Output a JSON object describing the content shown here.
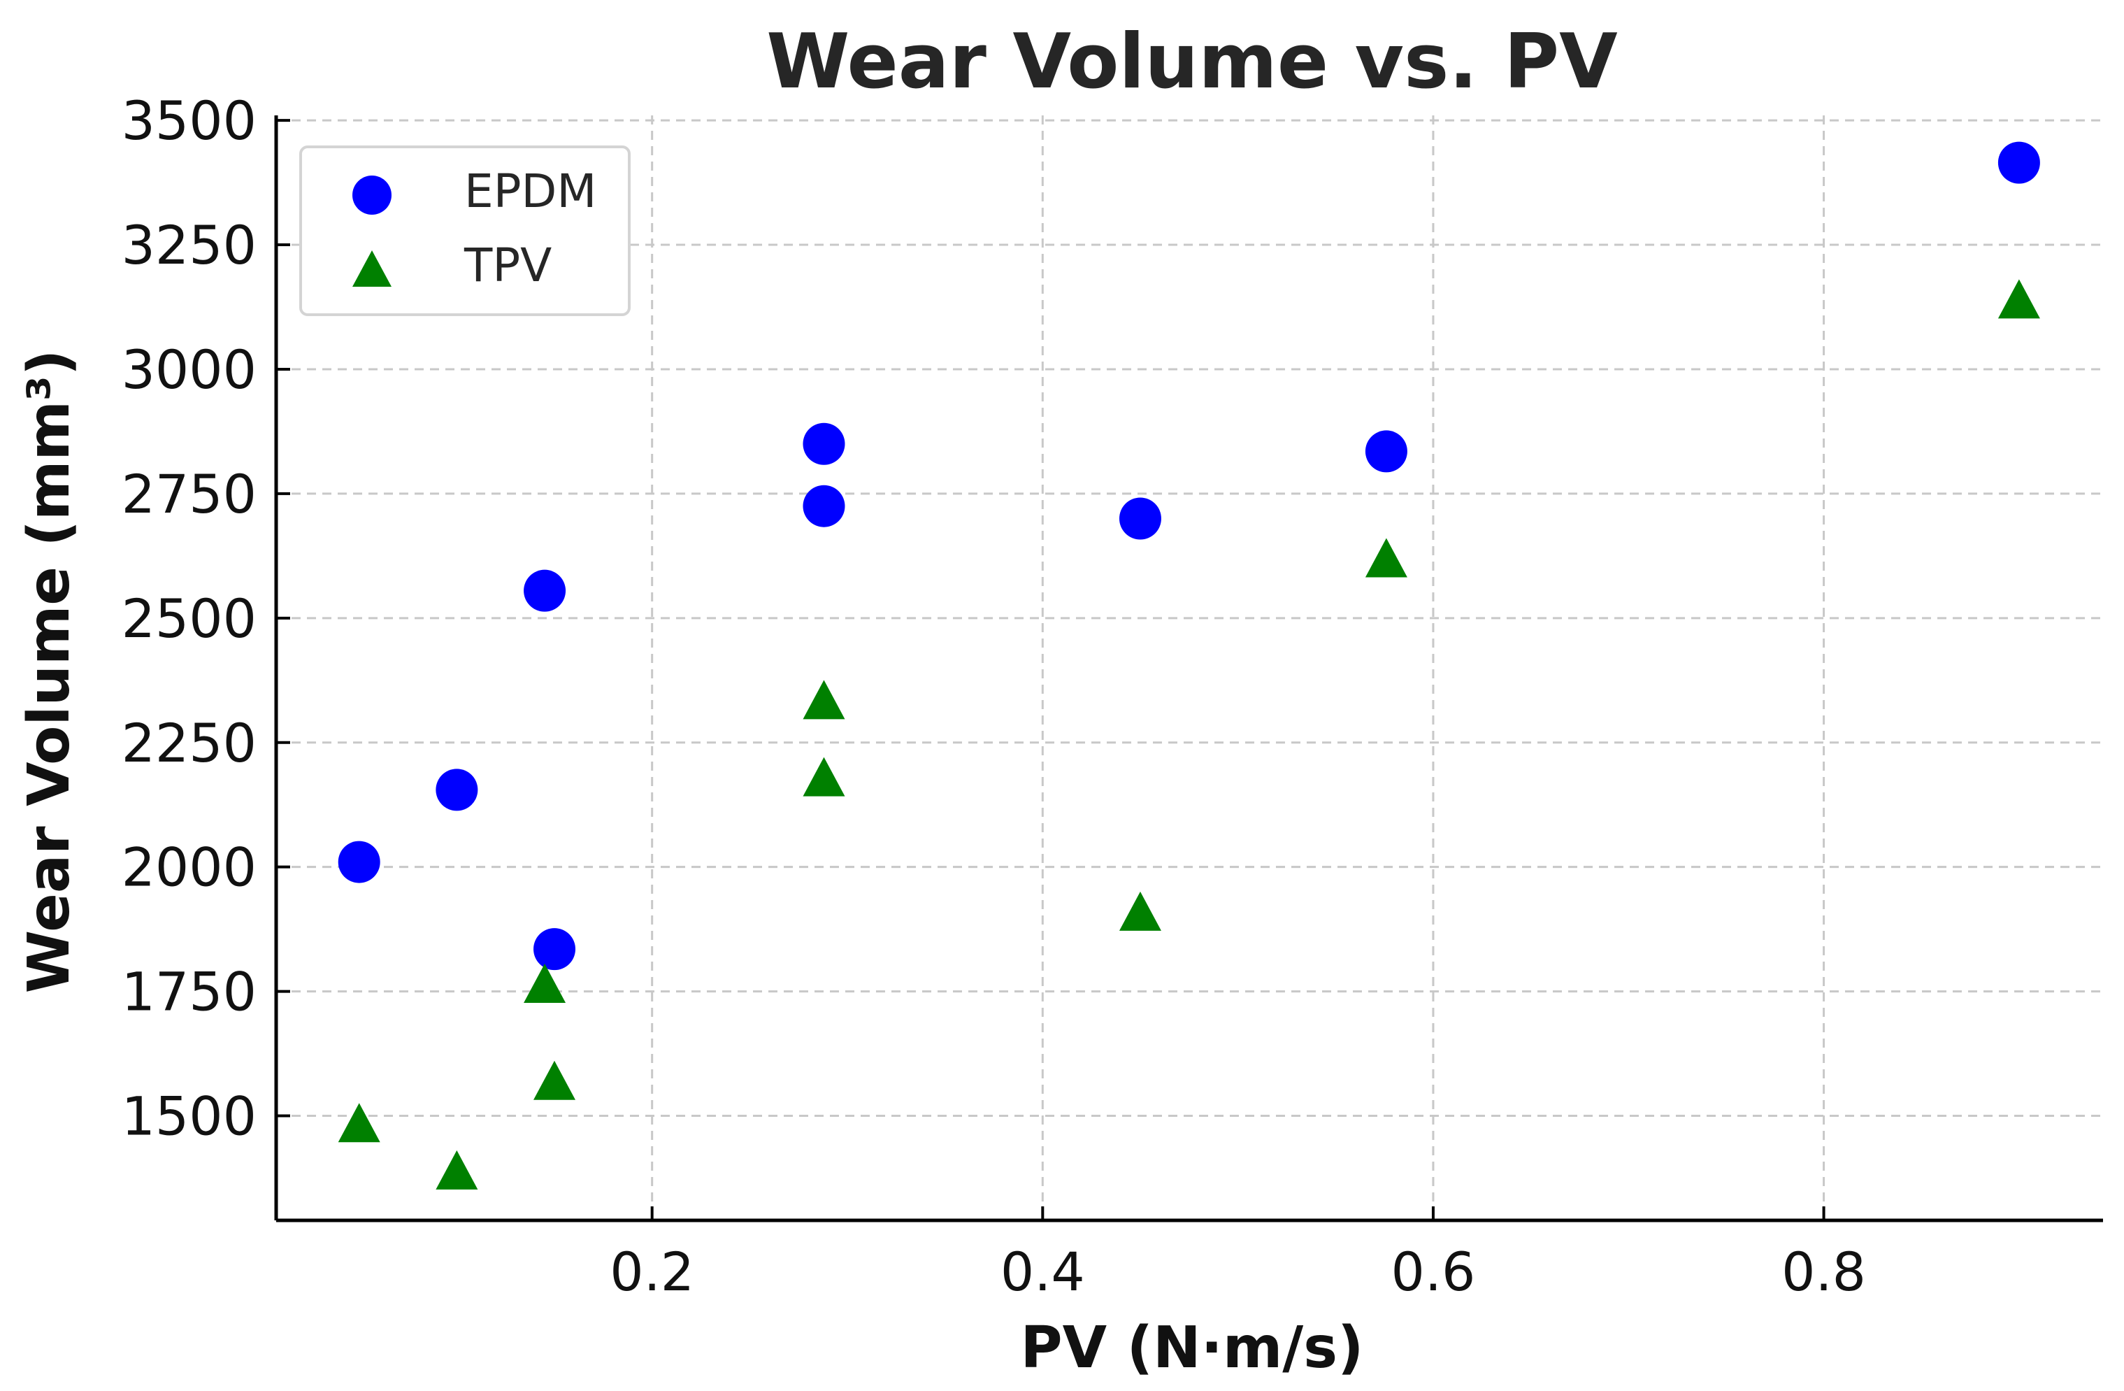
{
  "chart_data": {
    "type": "scatter",
    "title": "Wear Volume vs. PV",
    "xlabel": "PV (N·m/s)",
    "ylabel": "Wear Volume (mm³)",
    "xlim": [
      0.0075,
      0.943
    ],
    "ylim": [
      1290,
      3510
    ],
    "xticks": [
      0.2,
      0.4,
      0.6,
      0.8
    ],
    "xtick_labels": [
      "0.2",
      "0.4",
      "0.6",
      "0.8"
    ],
    "yticks": [
      1500,
      1750,
      2000,
      2250,
      2500,
      2750,
      3000,
      3250,
      3500
    ],
    "ytick_labels": [
      "1500",
      "1750",
      "2000",
      "2250",
      "2500",
      "2750",
      "3000",
      "3250",
      "3500"
    ],
    "grid": true,
    "legend_position": "top-left",
    "series": [
      {
        "name": "EPDM",
        "marker": "circle",
        "color": "#0000ff",
        "points": [
          {
            "x": 0.05,
            "y": 2010
          },
          {
            "x": 0.1,
            "y": 2155
          },
          {
            "x": 0.145,
            "y": 2555
          },
          {
            "x": 0.15,
            "y": 1835
          },
          {
            "x": 0.288,
            "y": 2850
          },
          {
            "x": 0.288,
            "y": 2725
          },
          {
            "x": 0.45,
            "y": 2700
          },
          {
            "x": 0.576,
            "y": 2835
          },
          {
            "x": 0.9,
            "y": 3415
          }
        ]
      },
      {
        "name": "TPV",
        "marker": "triangle",
        "color": "#008000",
        "points": [
          {
            "x": 0.05,
            "y": 1480
          },
          {
            "x": 0.1,
            "y": 1385
          },
          {
            "x": 0.145,
            "y": 1760
          },
          {
            "x": 0.15,
            "y": 1565
          },
          {
            "x": 0.288,
            "y": 2330
          },
          {
            "x": 0.288,
            "y": 2175
          },
          {
            "x": 0.45,
            "y": 1905
          },
          {
            "x": 0.576,
            "y": 2615
          },
          {
            "x": 0.9,
            "y": 3135
          }
        ]
      }
    ]
  }
}
